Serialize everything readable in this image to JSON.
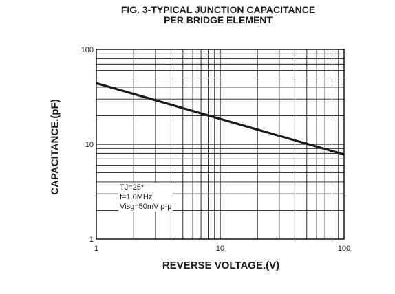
{
  "chart_data": {
    "type": "line",
    "title": "FIG. 3-TYPICAL JUNCTION CAPACITANCE",
    "subtitle": "PER BRIDGE ELEMENT",
    "xlabel": "REVERSE VOLTAGE.(V)",
    "ylabel": "CAPACITANCE.(pF)",
    "x_scale": "log",
    "y_scale": "log",
    "xlim": [
      1,
      100
    ],
    "ylim": [
      1,
      100
    ],
    "x_ticks": [
      "1",
      "10",
      "100"
    ],
    "y_ticks": [
      "1",
      "10",
      "100"
    ],
    "grid": true,
    "series": [
      {
        "x": [
          1,
          100
        ],
        "y": [
          44,
          7.8
        ],
        "color": "#1a1a1a"
      }
    ],
    "annotations": [
      "TJ=25*",
      "f=1.0MHz",
      "Visg=50mV p-p"
    ]
  }
}
